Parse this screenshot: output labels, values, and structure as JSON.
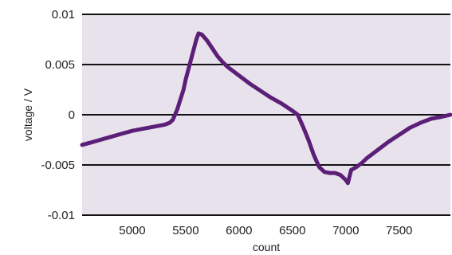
{
  "chart_data": {
    "type": "line",
    "title": "",
    "xlabel": "count",
    "ylabel": "voltage / V",
    "xlim": [
      4530,
      7980
    ],
    "ylim": [
      -0.01,
      0.01
    ],
    "x_ticks": [
      5000,
      5500,
      6000,
      6500,
      7000,
      7500
    ],
    "x_tick_labels": [
      "5000",
      "5500",
      "6000",
      "6500",
      "7000",
      "7500"
    ],
    "y_ticks": [
      -0.01,
      -0.005,
      0,
      0.005,
      0.01
    ],
    "y_tick_labels": [
      "-0.01",
      "-0.005",
      "0",
      "0.005",
      "0.01"
    ],
    "grid": "horizontal",
    "colors": {
      "plot_background": "#e8e2ec",
      "series": "#5c1f78",
      "grid": "#111111"
    },
    "series": [
      {
        "x": [
          4530,
          4600,
          4700,
          4800,
          4900,
          5000,
          5100,
          5200,
          5300,
          5350,
          5380,
          5420,
          5450,
          5480,
          5500,
          5550,
          5600,
          5620,
          5650,
          5700,
          5750,
          5800,
          5850,
          5900,
          6000,
          6100,
          6200,
          6300,
          6400,
          6500,
          6550,
          6600,
          6650,
          6700,
          6750,
          6800,
          6850,
          6900,
          6950,
          7000,
          7020,
          7050,
          7100,
          7150,
          7200,
          7300,
          7400,
          7500,
          7600,
          7700,
          7800,
          7900,
          7980
        ],
        "y": [
          -0.003,
          -0.0028,
          -0.0025,
          -0.0022,
          -0.0019,
          -0.0016,
          -0.0014,
          -0.0012,
          -0.001,
          -0.0008,
          -0.0005,
          0.0005,
          0.0015,
          0.0025,
          0.0035,
          0.0055,
          0.0075,
          0.0081,
          0.008,
          0.0074,
          0.0066,
          0.0058,
          0.0052,
          0.0047,
          0.0039,
          0.0031,
          0.0024,
          0.0017,
          0.0011,
          0.0004,
          0.0,
          -0.0012,
          -0.0025,
          -0.004,
          -0.0052,
          -0.0057,
          -0.0058,
          -0.0058,
          -0.006,
          -0.0065,
          -0.0068,
          -0.0055,
          -0.0052,
          -0.0048,
          -0.0043,
          -0.0035,
          -0.0027,
          -0.002,
          -0.0013,
          -0.0008,
          -0.0004,
          -0.0002,
          0.0
        ]
      }
    ]
  }
}
